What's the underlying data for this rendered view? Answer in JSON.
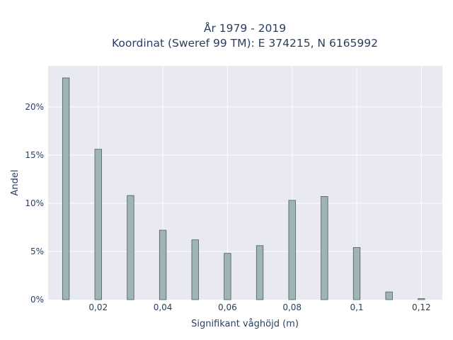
{
  "chart_data": {
    "type": "bar",
    "title_line1": "År 1979 - 2019",
    "title_line2": "Koordinat (Sweref 99 TM): E 374215, N 6165992",
    "xlabel": "Signifikant våghöjd (m)",
    "ylabel": "Andel",
    "x": [
      0.01,
      0.02,
      0.03,
      0.04,
      0.05,
      0.06,
      0.07,
      0.08,
      0.09,
      0.1,
      0.11,
      0.12
    ],
    "values": [
      0.23,
      0.156,
      0.108,
      0.072,
      0.062,
      0.048,
      0.056,
      0.103,
      0.107,
      0.054,
      0.008,
      0.001
    ],
    "xlim": [
      0.0045,
      0.1265
    ],
    "ylim": [
      0,
      0.2425
    ],
    "xticks": [
      {
        "value": 0.02,
        "label": "0,02"
      },
      {
        "value": 0.04,
        "label": "0,04"
      },
      {
        "value": 0.06,
        "label": "0,06"
      },
      {
        "value": 0.08,
        "label": "0,08"
      },
      {
        "value": 0.1,
        "label": "0,1"
      },
      {
        "value": 0.12,
        "label": "0,12"
      }
    ],
    "yticks": [
      {
        "value": 0,
        "label": "0%"
      },
      {
        "value": 0.05,
        "label": "5%"
      },
      {
        "value": 0.1,
        "label": "10%"
      },
      {
        "value": 0.15,
        "label": "15%"
      },
      {
        "value": 0.2,
        "label": "20%"
      }
    ],
    "grid": true,
    "colors": {
      "bar_fill": "#9fb4b4",
      "bar_stroke": "#4a5a5a",
      "plot_bg": "#e9e9f2",
      "grid": "#ffffff"
    }
  }
}
